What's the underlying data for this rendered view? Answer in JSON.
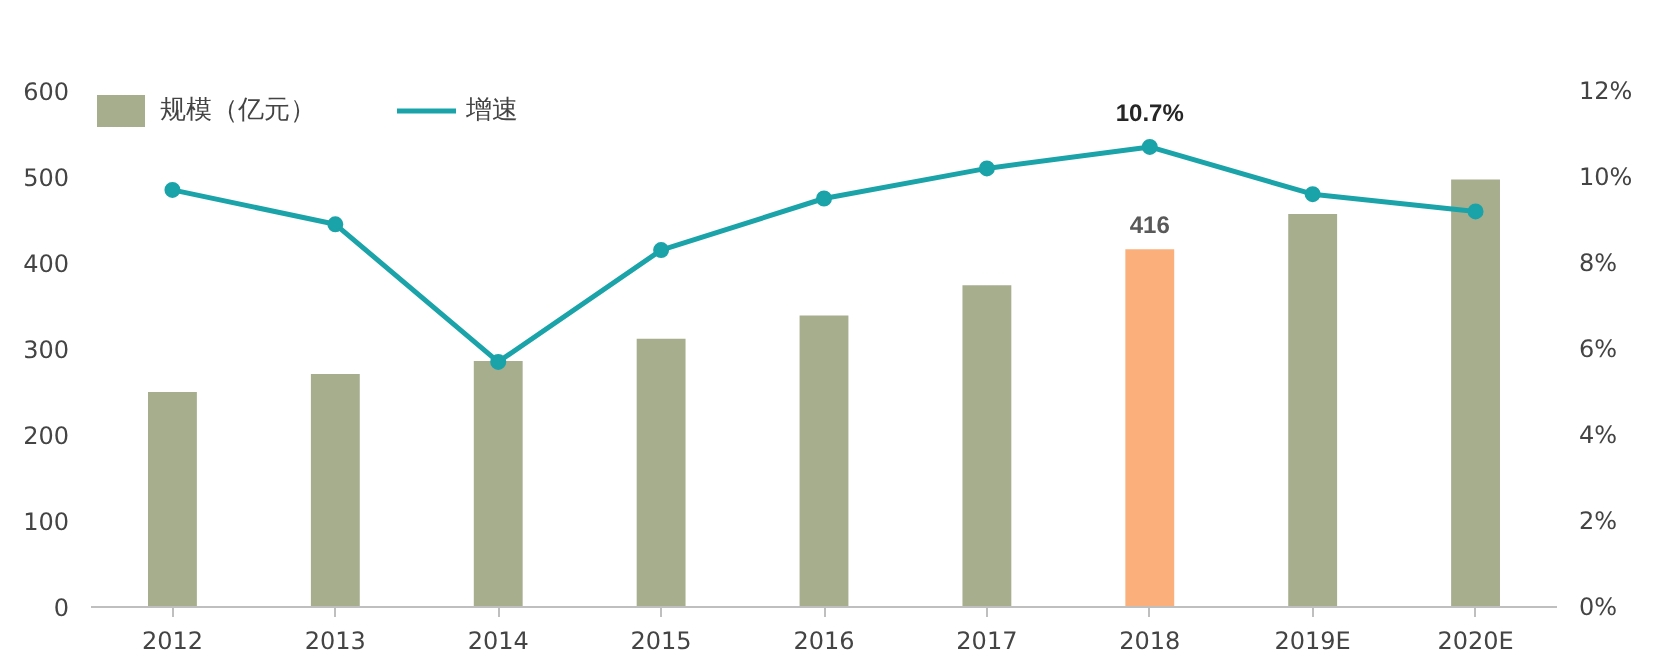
{
  "chart_data": {
    "type": "bar",
    "categories": [
      "2012",
      "2013",
      "2014",
      "2015",
      "2016",
      "2017",
      "2018",
      "2019E",
      "2020E"
    ],
    "series": [
      {
        "name": "规模（亿元）",
        "color": "#a7ae8e",
        "colors": [
          "#a7ae8e",
          "#a7ae8e",
          "#a7ae8e",
          "#a7ae8e",
          "#a7ae8e",
          "#a7ae8e",
          "#fbb07c",
          "#a7ae8e",
          "#a7ae8e"
        ],
        "values": [
          250,
          271,
          286,
          312,
          339,
          374,
          416,
          457,
          497
        ],
        "value_labels": [
          null,
          null,
          null,
          null,
          null,
          null,
          "416",
          null,
          null
        ]
      },
      {
        "name": "增速",
        "type": "line",
        "axis": "y2",
        "color": "#1aa3a8",
        "marker": "circle",
        "values": [
          9.7,
          8.9,
          5.7,
          8.3,
          9.5,
          10.2,
          10.7,
          9.6,
          9.2
        ],
        "value_labels": [
          null,
          null,
          null,
          null,
          null,
          null,
          "10.7%",
          null,
          null
        ]
      }
    ],
    "ylim": [
      0,
      600
    ],
    "yticks": [
      0,
      100,
      200,
      300,
      400,
      500,
      600
    ],
    "y2lim": [
      0,
      12
    ],
    "y2ticks": [
      {
        "value": 0,
        "label": "0%"
      },
      {
        "value": 2,
        "label": "2%"
      },
      {
        "value": 4,
        "label": "4%"
      },
      {
        "value": 6,
        "label": "6%"
      },
      {
        "value": 8,
        "label": "8%"
      },
      {
        "value": 10,
        "label": "10%"
      },
      {
        "value": 12,
        "label": "12%"
      }
    ],
    "legend": "top left",
    "grid": false
  }
}
